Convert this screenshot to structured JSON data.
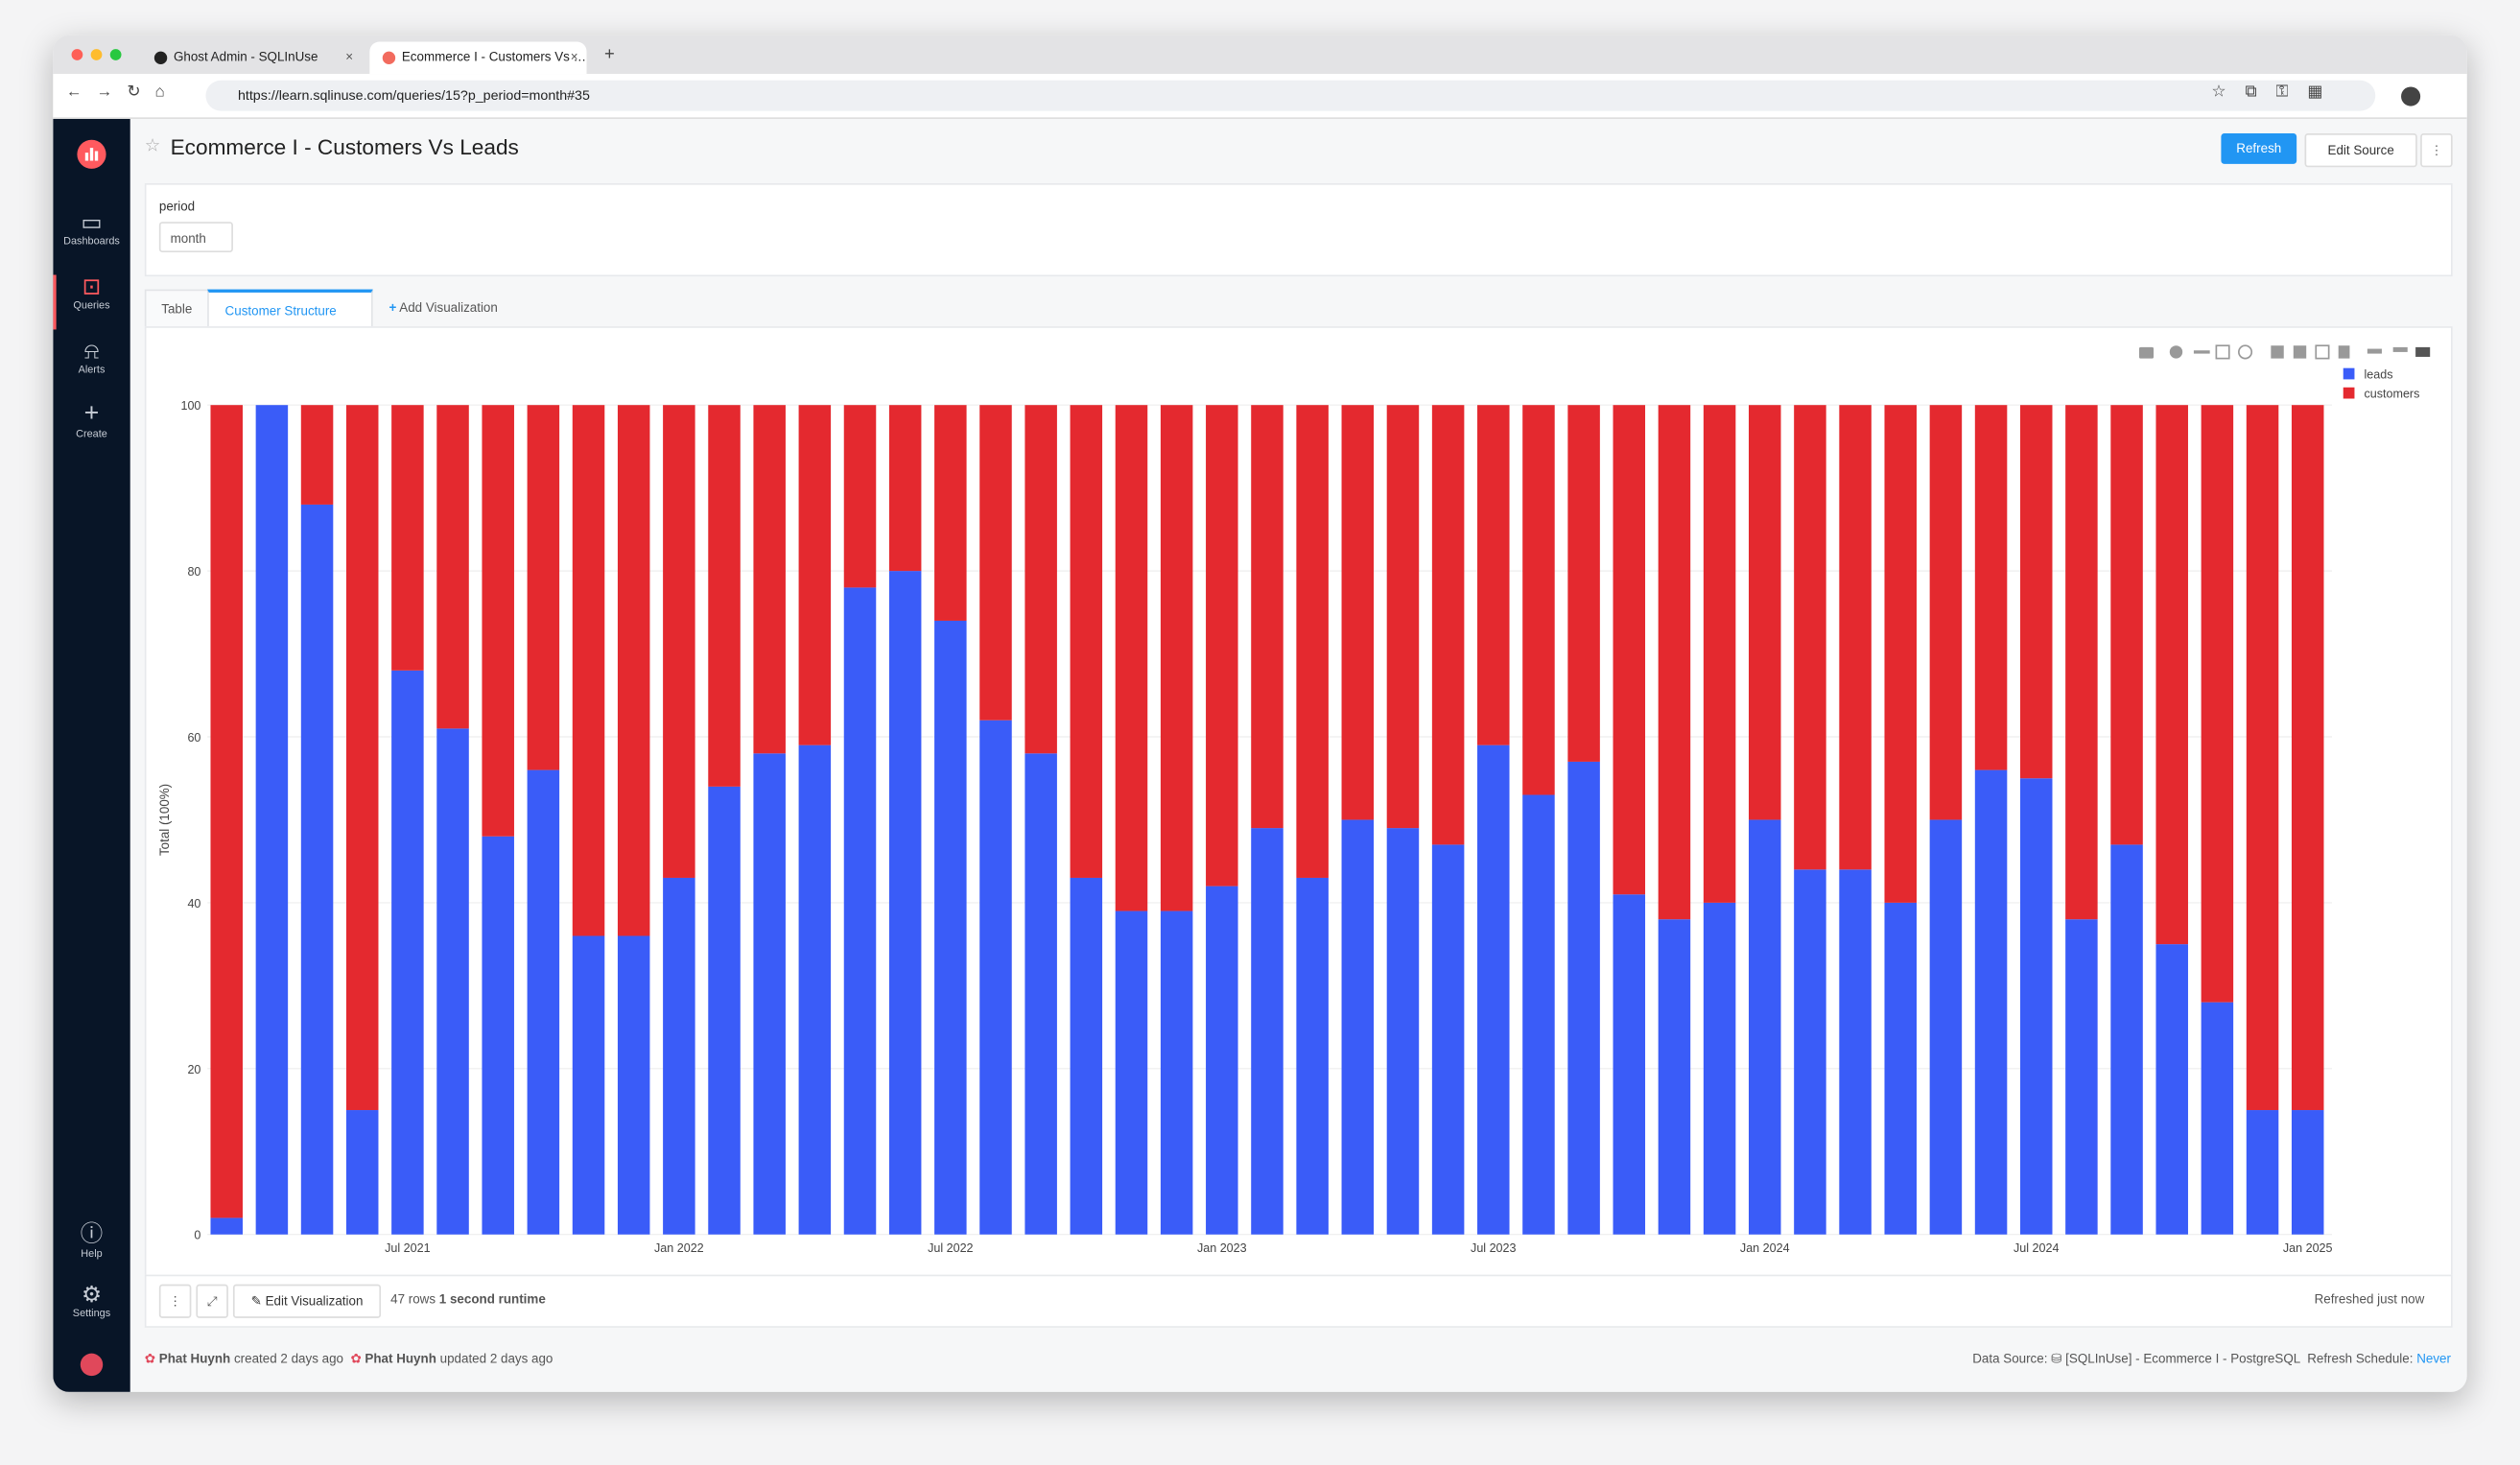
{
  "browser": {
    "tabs": [
      "Ghost Admin - SQLInUse",
      "Ecommerce I - Customers Vs Leads"
    ],
    "url": "https://learn.sqlinuse.com/queries/15?p_period=month#35"
  },
  "sidebar": {
    "items": [
      "Dashboards",
      "Queries",
      "Alerts",
      "Create"
    ],
    "bottom": [
      "Help",
      "Settings"
    ]
  },
  "header": {
    "title": "Ecommerce I - Customers Vs Leads",
    "buttons": [
      "Refresh",
      "Edit Source"
    ]
  },
  "parameter": {
    "label": "period",
    "value": "month"
  },
  "tabs": [
    "Table",
    "Customer Structure",
    "Add Visualization"
  ],
  "chart_data": {
    "type": "bar",
    "barmode": "stack",
    "ylabel": "Total (100%)",
    "x": [
      "2021-03",
      "2021-04",
      "2021-05",
      "2021-06",
      "2021-07",
      "2021-08",
      "2021-09",
      "2021-10",
      "2021-11",
      "2021-12",
      "2022-01",
      "2022-02",
      "2022-03",
      "2022-04",
      "2022-05",
      "2022-06",
      "2022-07",
      "2022-08",
      "2022-09",
      "2022-10",
      "2022-11",
      "2022-12",
      "2023-01",
      "2023-02",
      "2023-03",
      "2023-04",
      "2023-05",
      "2023-06",
      "2023-07",
      "2023-08",
      "2023-09",
      "2023-10",
      "2023-11",
      "2023-12",
      "2024-01",
      "2024-02",
      "2024-03",
      "2024-04",
      "2024-05",
      "2024-06",
      "2024-07",
      "2024-08",
      "2024-09",
      "2024-10",
      "2024-11",
      "2024-12",
      "2025-01"
    ],
    "series": [
      {
        "name": "leads",
        "color": "#3a5cf8",
        "values": [
          2,
          100,
          88,
          15,
          68,
          61,
          48,
          56,
          36,
          36,
          43,
          54,
          58,
          59,
          78,
          80,
          74,
          62,
          58,
          43,
          39,
          39,
          42,
          49,
          43,
          50,
          49,
          47,
          59,
          53,
          57,
          41,
          38,
          40,
          50,
          44,
          44,
          40,
          50,
          56,
          55,
          38,
          47,
          35,
          28,
          15,
          15
        ]
      },
      {
        "name": "customers",
        "color": "#e4292f",
        "values": [
          98,
          0,
          12,
          85,
          32,
          39,
          52,
          44,
          64,
          64,
          57,
          46,
          42,
          41,
          22,
          20,
          26,
          38,
          42,
          57,
          61,
          61,
          58,
          51,
          57,
          50,
          51,
          53,
          41,
          47,
          43,
          59,
          62,
          60,
          50,
          56,
          56,
          60,
          50,
          44,
          45,
          62,
          53,
          65,
          72,
          85,
          85
        ]
      }
    ],
    "ylim": [
      0,
      100
    ],
    "yticks": [
      0,
      20,
      40,
      60,
      80,
      100
    ],
    "xticks": [
      {
        "value": "2021-07",
        "label": "Jul 2021"
      },
      {
        "value": "2022-01",
        "label": "Jan 2022"
      },
      {
        "value": "2022-07",
        "label": "Jul 2022"
      },
      {
        "value": "2023-01",
        "label": "Jan 2023"
      },
      {
        "value": "2023-07",
        "label": "Jul 2023"
      },
      {
        "value": "2024-01",
        "label": "Jan 2024"
      },
      {
        "value": "2024-07",
        "label": "Jul 2024"
      },
      {
        "value": "2025-01",
        "label": "Jan 2025"
      }
    ],
    "grid": true,
    "legend": "top-right"
  },
  "toolbar": {
    "edit": "Edit Visualization",
    "rows": "47 rows",
    "runtime": "1 second runtime",
    "refreshed": "Refreshed just now"
  },
  "footer": {
    "created_by": "Phat Huynh",
    "created": "created 2 days ago",
    "updated_by": "Phat Huynh",
    "updated": "updated 2 days ago",
    "data_source_label": "Data Source:",
    "data_source": "[SQLInUse] - Ecommerce I - PostgreSQL",
    "schedule_label": "Refresh Schedule:",
    "schedule": "Never"
  }
}
